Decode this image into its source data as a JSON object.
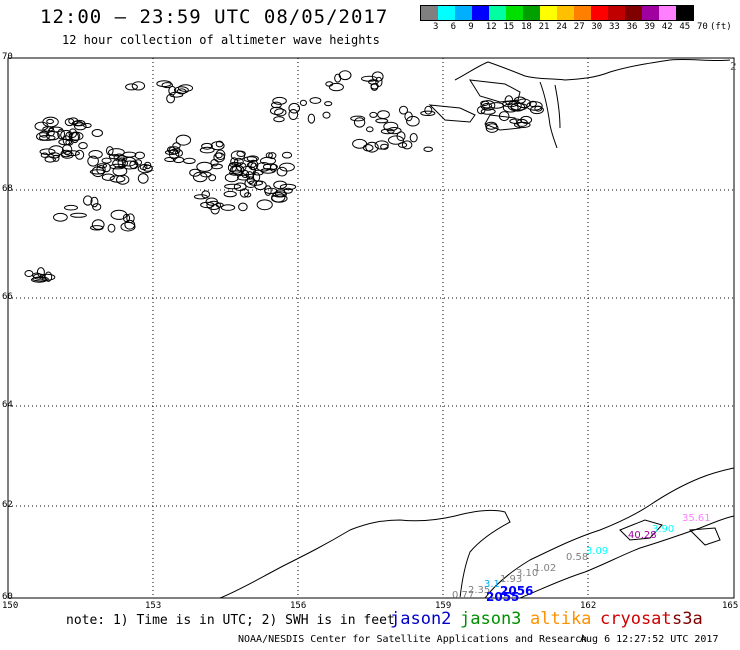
{
  "header": {
    "title": "12:00 – 23:59 UTC 08/05/2017",
    "subtitle": "12 hour collection of altimeter wave heights"
  },
  "scale": {
    "colors": [
      "#808080",
      "#00ffff",
      "#00b0ff",
      "#0000ff",
      "#00ffa0",
      "#00e000",
      "#00a000",
      "#ffff00",
      "#ffc000",
      "#ff8000",
      "#ff0000",
      "#c00000",
      "#800000",
      "#a000a0",
      "#ff80ff",
      "#000000"
    ],
    "labels": [
      "3",
      "6",
      "9",
      "12",
      "15",
      "18",
      "21",
      "24",
      "27",
      "30",
      "33",
      "36",
      "39",
      "42",
      "45",
      "70",
      "(ft)"
    ]
  },
  "map": {
    "lat_labels": [
      "70",
      "68",
      "66",
      "64",
      "62",
      "60"
    ],
    "lon_labels": [
      "150",
      "153",
      "156",
      "159",
      "162",
      "165"
    ],
    "corner_label": "2"
  },
  "swh_readings": [
    {
      "text": "0.77",
      "color": "#808080"
    },
    {
      "text": "2.35",
      "color": "#808080"
    },
    {
      "text": "3.1",
      "color": "#00b0ff"
    },
    {
      "text": "1.93",
      "color": "#808080"
    },
    {
      "text": "3.10",
      "color": "#808080"
    },
    {
      "text": "1.02",
      "color": "#808080"
    },
    {
      "text": "0.58",
      "color": "#808080"
    },
    {
      "text": "3.09",
      "color": "#00ffff"
    },
    {
      "text": "3.90",
      "color": "#00ffff"
    },
    {
      "text": "40.28",
      "color": "#a000a0"
    },
    {
      "text": "35.61",
      "color": "#ff80ff"
    },
    {
      "text": "2056",
      "color": "#0000ff"
    },
    {
      "text": "2055",
      "color": "#0000ff"
    }
  ],
  "footer": {
    "note": "note: 1) Time is in UTC; 2) SWH is in feet",
    "satellites": [
      {
        "name": "jason2",
        "color": "#0000c8"
      },
      {
        "name": "jason3",
        "color": "#009000"
      },
      {
        "name": "altika",
        "color": "#ff9000"
      },
      {
        "name": "cryosat",
        "color": "#d00000"
      },
      {
        "name": "s3a",
        "color": "#800000"
      }
    ],
    "credit": "NOAA/NESDIS Center for Satellite Applications and Research",
    "timestamp": "Aug  6 12:27:52 UTC 2017"
  }
}
